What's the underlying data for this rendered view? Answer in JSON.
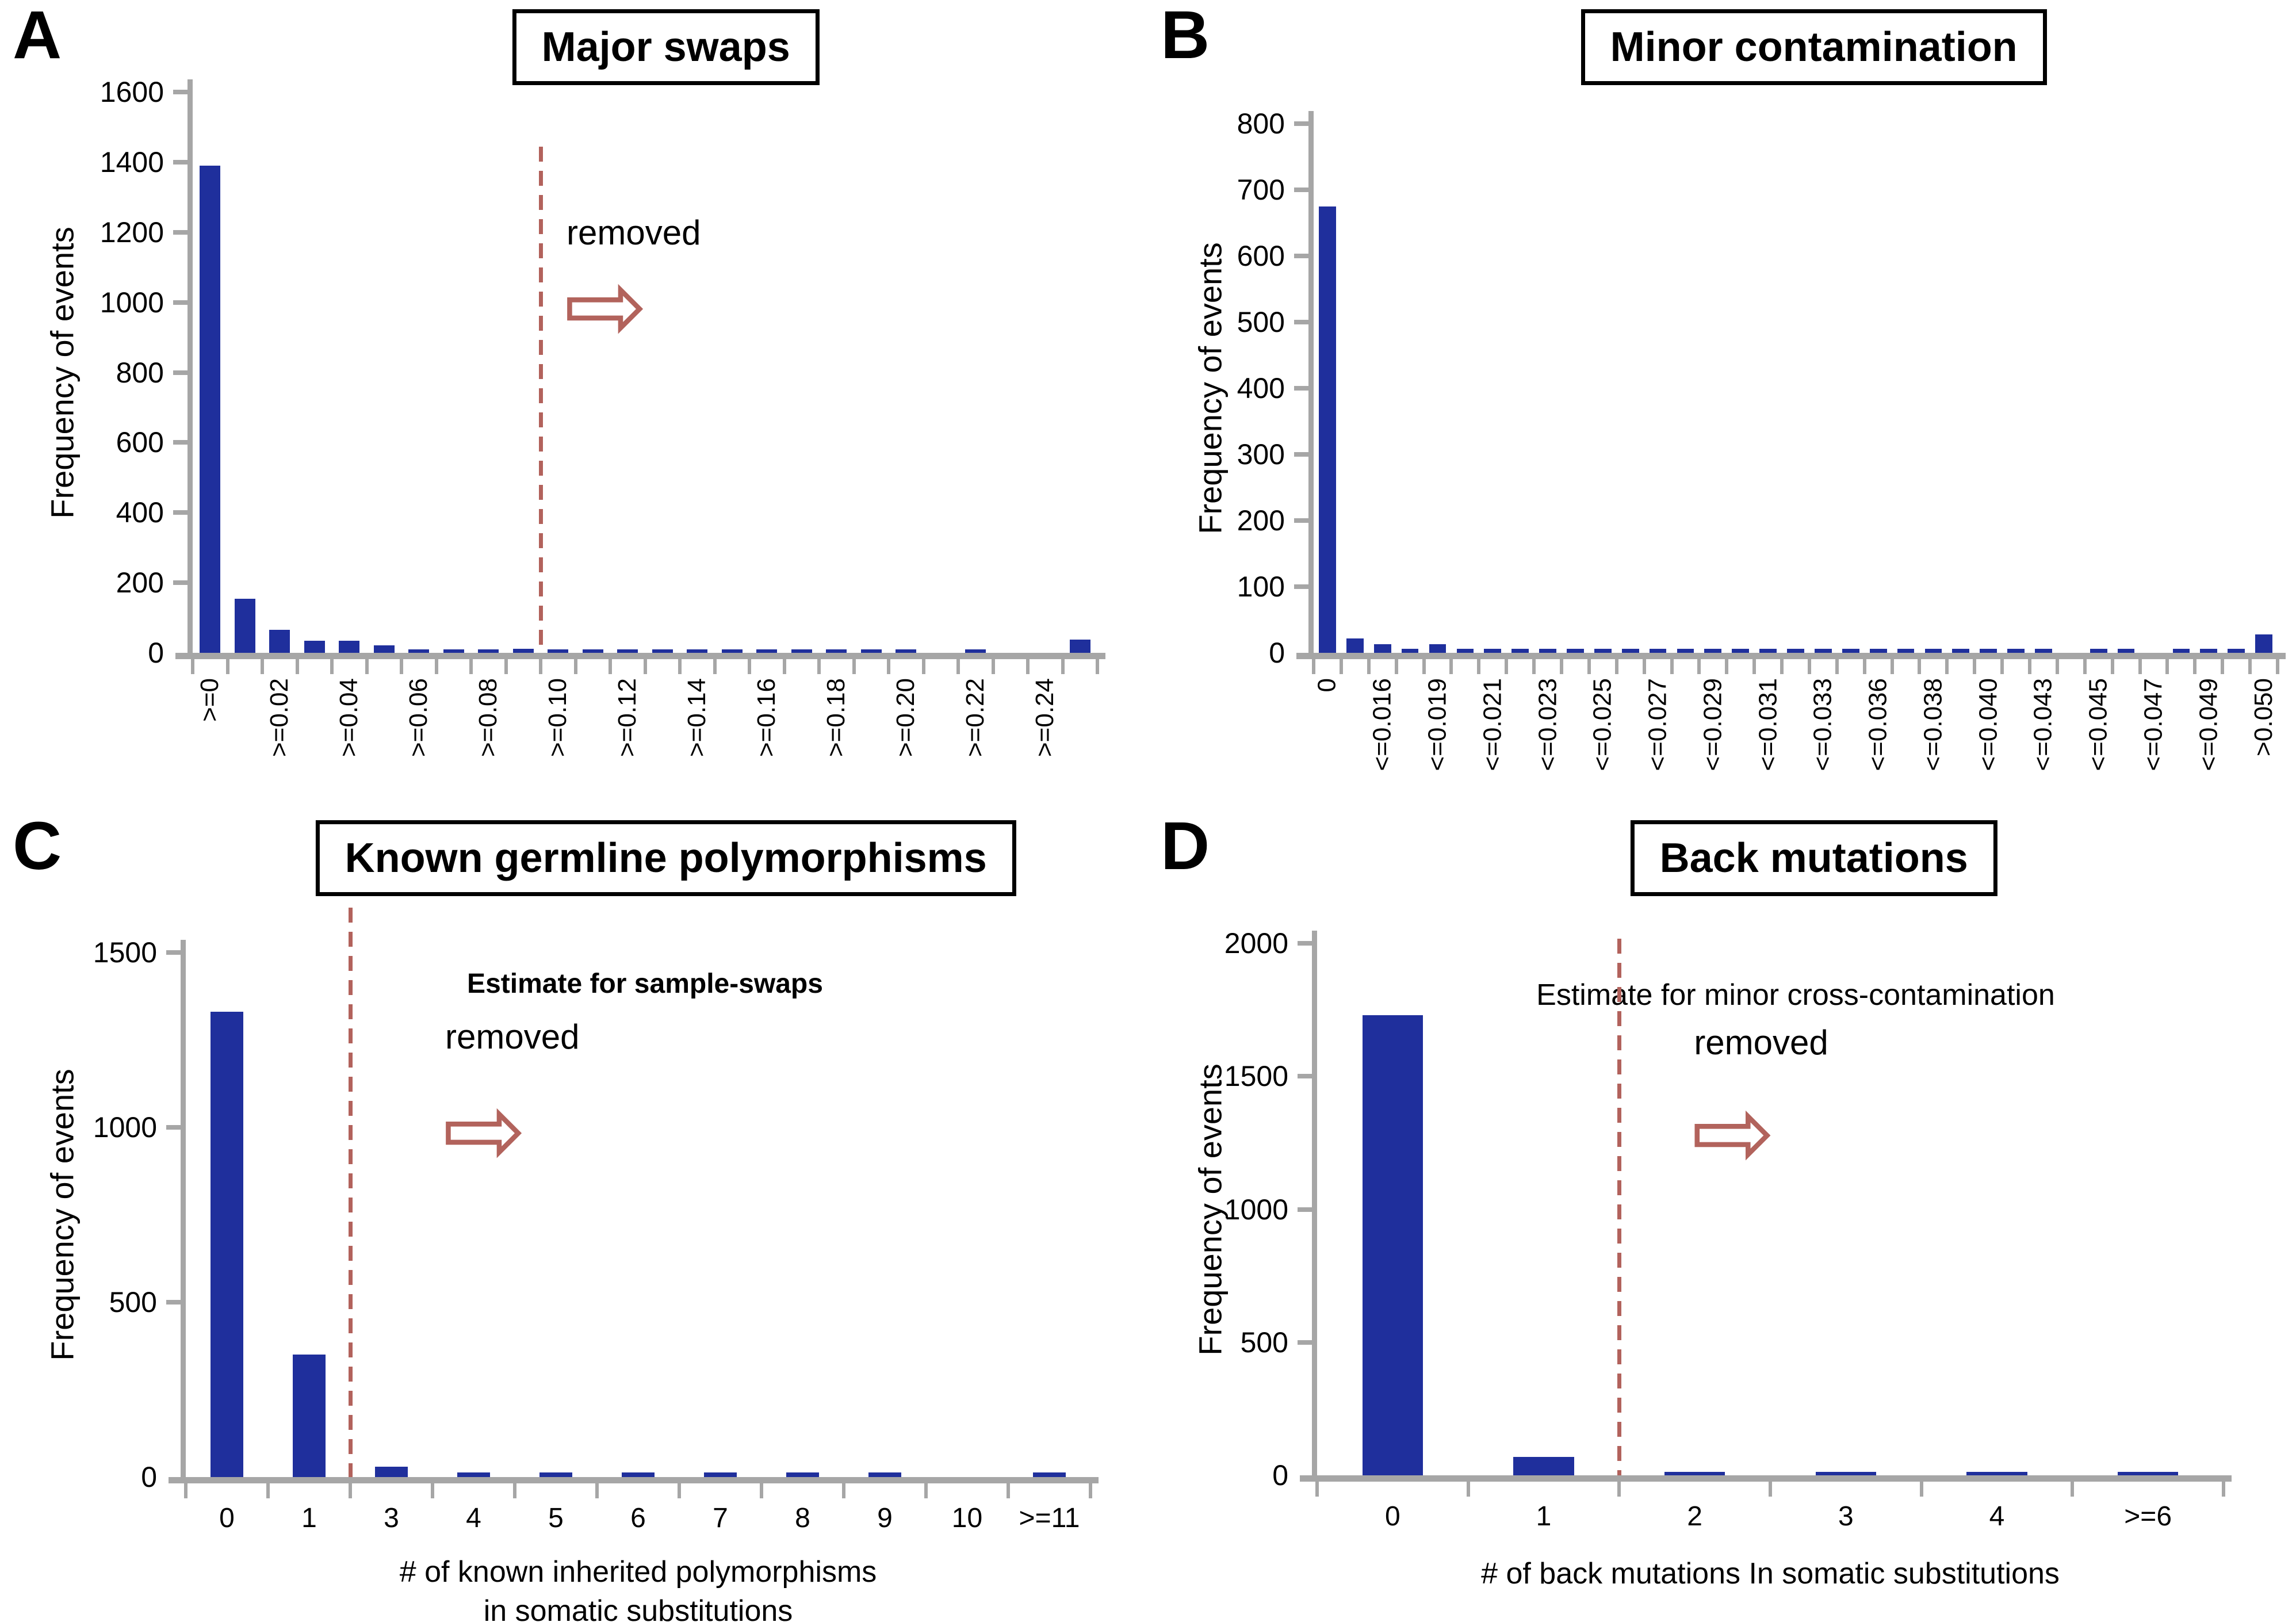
{
  "colors": {
    "bar": "#1f2f9c",
    "axis": "#a6a6a6",
    "divider": "#b2625c",
    "arrow": "#b2635c",
    "title_border": "#000000",
    "background": "#ffffff"
  },
  "chart_data": [
    {
      "id": "A",
      "type": "bar",
      "letter": "A",
      "title": "Major swaps",
      "ylabel": "Frequency of events",
      "xlabel_lines": [
        "Estimate for sample-swaps"
      ],
      "xlabel_bold": true,
      "ylim": [
        0,
        1600
      ],
      "ystep": 200,
      "grid": false,
      "legend": "none",
      "rotated_x_labels": true,
      "categories": [
        ">=0",
        "",
        ">=0.02",
        "",
        ">=0.04",
        "",
        ">=0.06",
        "",
        ">=0.08",
        "",
        ">=0.10",
        "",
        ">=0.12",
        "",
        ">=0.14",
        "",
        ">=0.16",
        "",
        ">=0.18",
        "",
        ">=0.20",
        "",
        ">=0.22",
        "",
        ">=0.24",
        ""
      ],
      "values": [
        1390,
        155,
        65,
        35,
        35,
        22,
        10,
        10,
        10,
        12,
        10,
        10,
        10,
        10,
        10,
        10,
        10,
        10,
        10,
        10,
        10,
        0,
        10,
        0,
        0,
        38
      ],
      "divider": {
        "after_bin": 10,
        "label": "removed",
        "arrow": "right"
      }
    },
    {
      "id": "B",
      "type": "bar",
      "letter": "B",
      "title": "Minor contamination",
      "ylabel": "Frequency of events",
      "xlabel_lines": [
        "Estimate for minor cross-contamination"
      ],
      "xlabel_bold": false,
      "ylim": [
        0,
        800
      ],
      "ystep": 100,
      "grid": false,
      "legend": "none",
      "rotated_x_labels": true,
      "categories": [
        "0",
        "",
        "<=0.016",
        "",
        "<=0.019",
        "",
        "<=0.021",
        "",
        "<=0.023",
        "",
        "<=0.025",
        "",
        "<=0.027",
        "",
        "<=0.029",
        "",
        "<=0.031",
        "",
        "<=0.033",
        "",
        "<=0.036",
        "",
        "<=0.038",
        "",
        "<=0.040",
        "",
        "<=0.043",
        "",
        "<=0.045",
        "",
        "<=0.047",
        "",
        "<=0.049",
        "",
        ">0.050"
      ],
      "values": [
        675,
        22,
        13,
        6,
        13,
        6,
        6,
        6,
        6,
        6,
        6,
        6,
        6,
        6,
        6,
        6,
        6,
        6,
        6,
        6,
        6,
        6,
        6,
        6,
        6,
        6,
        6,
        0,
        6,
        6,
        0,
        6,
        6,
        6,
        28
      ],
      "divider": null
    },
    {
      "id": "C",
      "type": "bar",
      "letter": "C",
      "title": "Known germline polymorphisms",
      "ylabel": "Frequency of events",
      "xlabel_lines": [
        "# of known inherited polymorphisms",
        "in somatic substitutions"
      ],
      "xlabel_bold": false,
      "ylim": [
        0,
        1500
      ],
      "ystep": 500,
      "grid": false,
      "legend": "none",
      "rotated_x_labels": false,
      "categories": [
        "0",
        "1",
        "3",
        "4",
        "5",
        "6",
        "7",
        "8",
        "9",
        "10",
        ">=11"
      ],
      "values": [
        1330,
        350,
        30,
        13,
        13,
        13,
        13,
        13,
        13,
        0,
        13
      ],
      "divider": {
        "after_bin": 2,
        "label": "removed",
        "arrow": "right"
      }
    },
    {
      "id": "D",
      "type": "bar",
      "letter": "D",
      "title": "Back mutations",
      "ylabel": "Frequency of events",
      "xlabel_lines": [
        "# of back mutations In somatic substitutions"
      ],
      "xlabel_bold": false,
      "ylim": [
        0,
        2000
      ],
      "ystep": 500,
      "grid": false,
      "legend": "none",
      "rotated_x_labels": false,
      "categories": [
        "0",
        "1",
        "2",
        "3",
        "4",
        ">=6"
      ],
      "values": [
        1730,
        70,
        12,
        12,
        12,
        12
      ],
      "divider": {
        "after_bin": 2,
        "label": "removed",
        "arrow": "right"
      }
    }
  ]
}
